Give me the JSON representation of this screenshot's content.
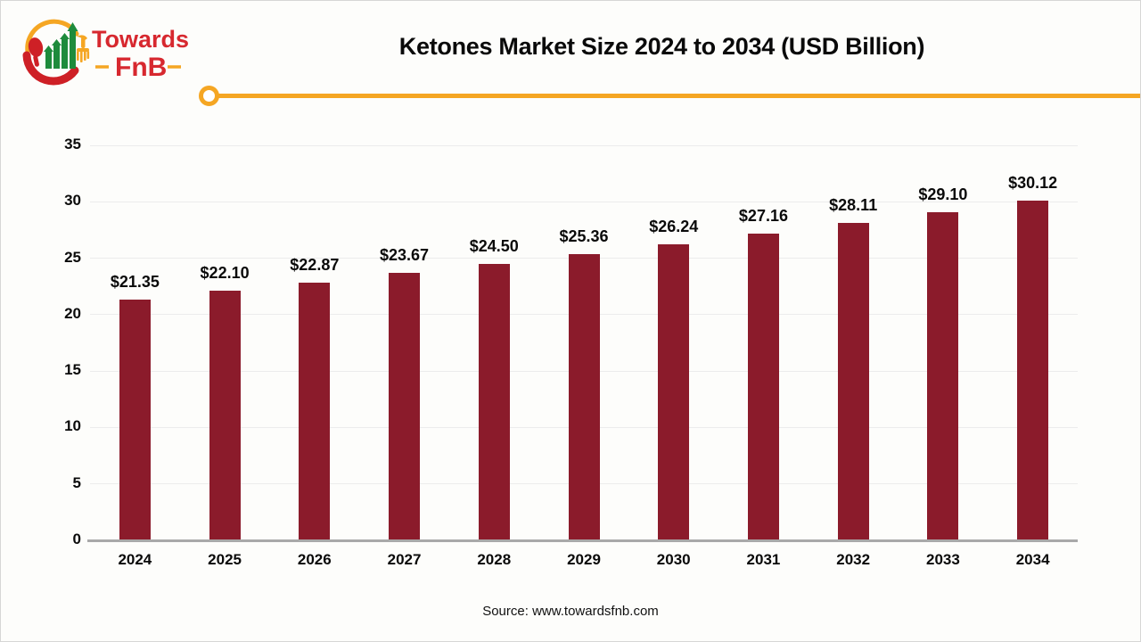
{
  "logo": {
    "towards": "Towards",
    "fnb": "FnB",
    "colors": {
      "red": "#D7282F",
      "green": "#1E8B3C",
      "yellow": "#F5A623"
    }
  },
  "header": {
    "title": "Ketones Market Size 2024 to 2034 (USD Billion)"
  },
  "footer": {
    "source": "Source: www.towardsfnb.com"
  },
  "chart_data": {
    "type": "bar",
    "title": "Ketones Market Size 2024 to 2034 (USD Billion)",
    "categories": [
      "2024",
      "2025",
      "2026",
      "2027",
      "2028",
      "2029",
      "2030",
      "2031",
      "2032",
      "2033",
      "2034"
    ],
    "values": [
      21.35,
      22.1,
      22.87,
      23.67,
      24.5,
      25.36,
      26.24,
      27.16,
      28.11,
      29.1,
      30.12
    ],
    "value_labels": [
      "$21.35",
      "$22.10",
      "$22.87",
      "$23.67",
      "$24.50",
      "$25.36",
      "$26.24",
      "$27.16",
      "$28.11",
      "$29.10",
      "$30.12"
    ],
    "xlabel": "",
    "ylabel": "",
    "ylim": [
      0,
      35
    ],
    "yticks": [
      0,
      5,
      10,
      15,
      20,
      25,
      30,
      35
    ],
    "grid": true,
    "legend": "none",
    "bar_color": "#8B1B2B",
    "gridline_color": "#ECECEC",
    "axis_line_color": "#A9A9A9",
    "accent_color": "#F5A623",
    "label_color": "#0A0A0A"
  }
}
